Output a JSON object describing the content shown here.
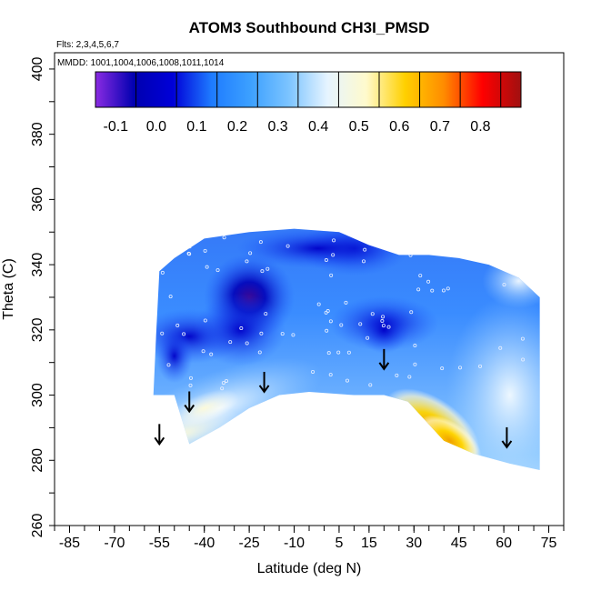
{
  "chart_data": {
    "type": "heatmap",
    "title": "ATOM3 Southbound CH3I_PMSD",
    "subtitle_flights": "Flts: 2,3,4,5,6,7",
    "subtitle_dates": "MMDD: 1001,1004,1006,1008,1011,1014",
    "xlabel": "Latitude (deg N)",
    "ylabel": "Theta (C)",
    "xlim": [
      -90,
      80
    ],
    "ylim": [
      260,
      405
    ],
    "x_ticks": [
      -85,
      -70,
      -55,
      -40,
      -25,
      -10,
      5,
      15,
      30,
      45,
      60,
      75
    ],
    "x_tick_labels": [
      "-85",
      "-70",
      "-55",
      "-40",
      "-25",
      "-10",
      "5",
      "15",
      "30",
      "45",
      "60",
      "75"
    ],
    "y_ticks": [
      260,
      280,
      300,
      320,
      340,
      360,
      380,
      400
    ],
    "y_tick_labels": [
      "260",
      "280",
      "300",
      "320",
      "340",
      "360",
      "380",
      "400"
    ],
    "colorbar": {
      "range": [
        -0.15,
        0.9
      ],
      "ticks": [
        -0.1,
        0.0,
        0.1,
        0.2,
        0.3,
        0.4,
        0.5,
        0.6,
        0.7,
        0.8
      ],
      "tick_labels": [
        "-0.1",
        "0.0",
        "0.1",
        "0.2",
        "0.3",
        "0.4",
        "0.5",
        "0.6",
        "0.7",
        "0.8"
      ],
      "colors": [
        "#8a2be2",
        "#0000b0",
        "#0000d8",
        "#1e7bff",
        "#3ca0ff",
        "#7cc4ff",
        "#e6f4ff",
        "#fffacc",
        "#ffd000",
        "#ff8c00",
        "#ff0000",
        "#a01010"
      ]
    },
    "arrows": [
      {
        "lat": -55,
        "theta": 285
      },
      {
        "lat": -45,
        "theta": 295
      },
      {
        "lat": -20,
        "theta": 301
      },
      {
        "lat": 20,
        "theta": 308
      },
      {
        "lat": 61,
        "theta": 284
      }
    ],
    "field": {
      "boundary_top": [
        [
          -55,
          338
        ],
        [
          -50,
          342
        ],
        [
          -40,
          348
        ],
        [
          -25,
          350
        ],
        [
          -10,
          351
        ],
        [
          5,
          350
        ],
        [
          15,
          346
        ],
        [
          25,
          343
        ],
        [
          35,
          343
        ],
        [
          45,
          342
        ],
        [
          55,
          340
        ],
        [
          65,
          336
        ],
        [
          72,
          330
        ]
      ],
      "boundary_bottom": [
        [
          72,
          277
        ],
        [
          62,
          279
        ],
        [
          50,
          282
        ],
        [
          40,
          286
        ],
        [
          33,
          293
        ],
        [
          28,
          298
        ],
        [
          20,
          300
        ],
        [
          10,
          300
        ],
        [
          -5,
          301
        ],
        [
          -15,
          300
        ],
        [
          -25,
          296
        ],
        [
          -35,
          290
        ],
        [
          -45,
          285
        ],
        [
          -50,
          300
        ],
        [
          -57,
          300
        ],
        [
          -56,
          320
        ]
      ],
      "low_regions": [
        {
          "lat": -25,
          "theta": 330,
          "value": -0.05
        },
        {
          "lat": 10,
          "theta": 345,
          "value": 0.0
        },
        {
          "lat": 20,
          "theta": 322,
          "value": 0.02
        },
        {
          "lat": -45,
          "theta": 318,
          "value": 0.05
        }
      ],
      "high_regions": [
        {
          "lat": 36,
          "theta": 290,
          "value": 0.55
        },
        {
          "lat": -35,
          "theta": 293,
          "value": 0.45
        },
        {
          "lat": 60,
          "theta": 333,
          "value": 0.35
        }
      ]
    }
  }
}
